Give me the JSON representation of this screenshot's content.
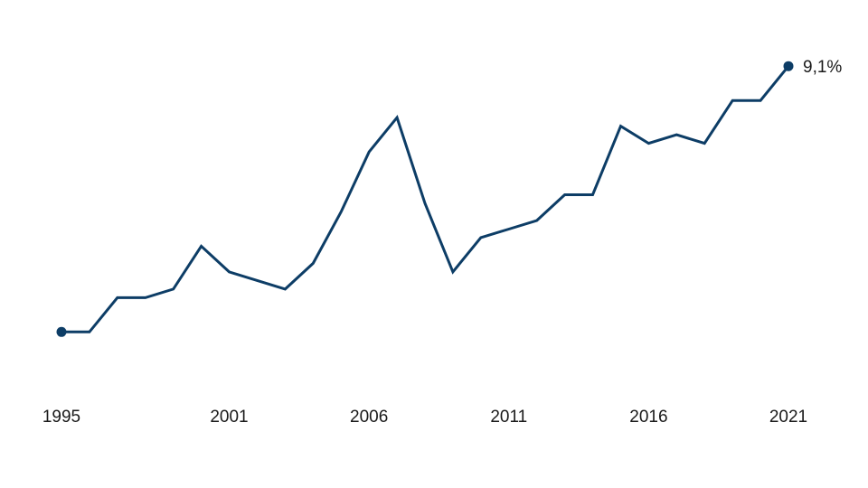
{
  "chart_data": {
    "type": "line",
    "title": "",
    "xlabel": "",
    "ylabel": "",
    "x": [
      1995,
      1996,
      1997,
      1998,
      1999,
      2000,
      2001,
      2002,
      2003,
      2004,
      2005,
      2006,
      2007,
      2008,
      2009,
      2010,
      2011,
      2012,
      2013,
      2014,
      2015,
      2016,
      2017,
      2018,
      2019,
      2020,
      2021
    ],
    "x_tick_labels": [
      "1995",
      "2001",
      "2006",
      "2011",
      "2016",
      "2021"
    ],
    "series": [
      {
        "color": "#0d3d66",
        "values": [
          2.9,
          2.9,
          3.7,
          3.7,
          3.9,
          4.9,
          4.3,
          4.1,
          3.9,
          4.5,
          5.7,
          7.1,
          7.9,
          5.9,
          4.3,
          5.1,
          5.3,
          5.5,
          6.1,
          6.1,
          7.7,
          7.3,
          7.5,
          7.3,
          8.3,
          8.3,
          9.1
        ]
      }
    ],
    "end_label": "9,1%",
    "ylim": [
      2.0,
      9.8
    ],
    "grid": false,
    "legend": "none",
    "markers": "first-and-last"
  }
}
